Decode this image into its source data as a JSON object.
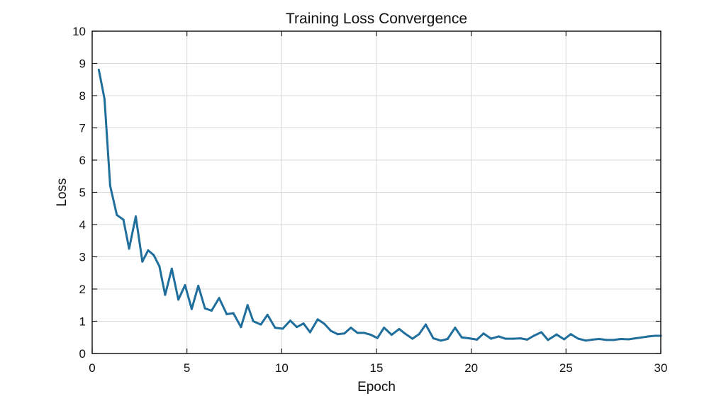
{
  "chart_data": {
    "type": "line",
    "title": "Training Loss Convergence",
    "xlabel": "Epoch",
    "ylabel": "Loss",
    "xlim": [
      0,
      30
    ],
    "ylim": [
      0,
      10
    ],
    "xticks": [
      0,
      5,
      10,
      15,
      20,
      25,
      30
    ],
    "yticks": [
      0,
      1,
      2,
      3,
      4,
      5,
      6,
      7,
      8,
      9,
      10
    ],
    "grid": true,
    "series": [
      {
        "color": "#1f6e9c",
        "x": [
          0.35,
          0.65,
          0.95,
          1.3,
          1.65,
          1.95,
          2.3,
          2.65,
          2.95,
          3.25,
          3.55,
          3.85,
          4.2,
          4.55,
          4.9,
          5.25,
          5.6,
          5.95,
          6.3,
          6.7,
          7.1,
          7.45,
          7.85,
          8.2,
          8.5,
          8.9,
          9.25,
          9.65,
          10.05,
          10.45,
          10.8,
          11.15,
          11.5,
          11.9,
          12.25,
          12.6,
          12.95,
          13.3,
          13.65,
          14.0,
          14.35,
          14.7,
          15.05,
          15.4,
          15.8,
          16.2,
          16.5,
          16.9,
          17.25,
          17.6,
          18.0,
          18.4,
          18.75,
          19.15,
          19.5,
          19.9,
          20.3,
          20.65,
          21.05,
          21.45,
          21.8,
          22.2,
          22.6,
          22.95,
          23.3,
          23.7,
          24.05,
          24.5,
          24.9,
          25.25,
          25.65,
          26.05,
          26.4,
          26.75,
          27.15,
          27.5,
          27.9,
          28.3,
          28.65,
          29.0,
          29.35,
          29.7,
          30.0
        ],
        "y": [
          8.8,
          7.9,
          5.2,
          4.3,
          4.15,
          3.25,
          4.25,
          2.85,
          3.2,
          3.05,
          2.7,
          1.82,
          2.63,
          1.67,
          2.12,
          1.38,
          2.1,
          1.4,
          1.33,
          1.72,
          1.22,
          1.25,
          0.82,
          1.5,
          1.0,
          0.9,
          1.2,
          0.8,
          0.77,
          1.02,
          0.82,
          0.93,
          0.66,
          1.06,
          0.92,
          0.7,
          0.6,
          0.62,
          0.8,
          0.64,
          0.64,
          0.58,
          0.48,
          0.8,
          0.58,
          0.76,
          0.62,
          0.46,
          0.6,
          0.9,
          0.47,
          0.4,
          0.45,
          0.8,
          0.5,
          0.47,
          0.43,
          0.62,
          0.46,
          0.53,
          0.46,
          0.46,
          0.47,
          0.43,
          0.55,
          0.66,
          0.42,
          0.59,
          0.44,
          0.6,
          0.46,
          0.4,
          0.43,
          0.45,
          0.42,
          0.42,
          0.45,
          0.44,
          0.47,
          0.5,
          0.53,
          0.55,
          0.55
        ]
      }
    ]
  }
}
